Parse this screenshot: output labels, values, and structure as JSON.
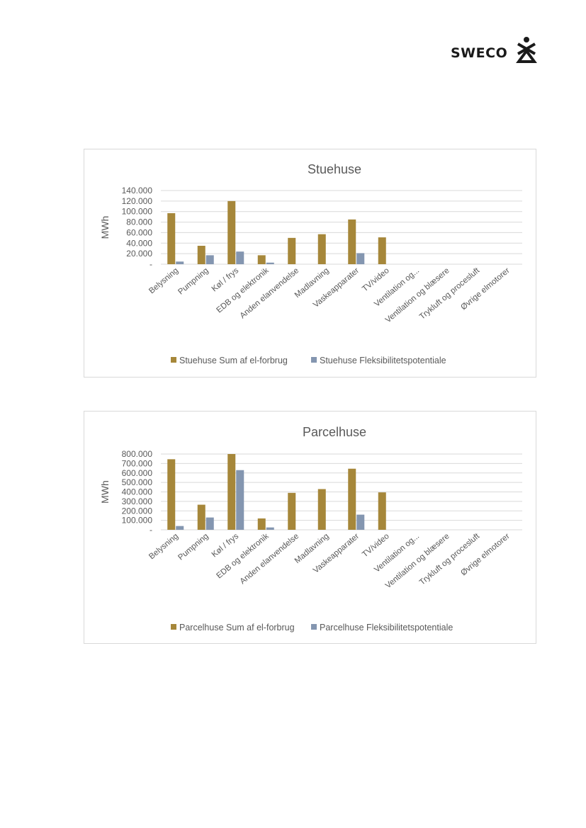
{
  "header": {
    "logo_text": "SWECO"
  },
  "chart_data": [
    {
      "type": "bar",
      "title": "Stuehuse",
      "ylabel": "MWh",
      "xlabel": "",
      "ylim": [
        0,
        140000
      ],
      "yticks": [
        "-",
        "20.000",
        "40.000",
        "60.000",
        "80.000",
        "100.000",
        "120.000",
        "140.000"
      ],
      "categories": [
        "Belysning",
        "Pumpning",
        "Køl / frys",
        "EDB og elektronik",
        "Anden elanvendelse",
        "Madlavning",
        "Vaskeapparater",
        "TV/video",
        "Ventilation og...",
        "Ventilation og blæsere",
        "Trykluft og procesluft",
        "Øvrige elmotorer"
      ],
      "series": [
        {
          "name": "Stuehuse Sum af el-forbrug",
          "color": "#a6873a",
          "values": [
            97000,
            35000,
            120000,
            17000,
            50000,
            57000,
            85000,
            51000,
            0,
            0,
            0,
            0
          ]
        },
        {
          "name": "Stuehuse Fleksibilitetspotentiale",
          "color": "#8496b0",
          "values": [
            5000,
            17000,
            24000,
            3000,
            0,
            0,
            21000,
            0,
            0,
            0,
            0,
            0
          ]
        }
      ],
      "grid": true,
      "legend": "bottom"
    },
    {
      "type": "bar",
      "title": "Parcelhuse",
      "ylabel": "MWh",
      "xlabel": "",
      "ylim": [
        0,
        800000
      ],
      "yticks": [
        "-",
        "100.000",
        "200.000",
        "300.000",
        "400.000",
        "500.000",
        "600.000",
        "700.000",
        "800.000"
      ],
      "categories": [
        "Belysning",
        "Pumpning",
        "Køl / frys",
        "EDB og elektronik",
        "Anden elanvendelse",
        "Madlavning",
        "Vaskeapparater",
        "TV/video",
        "Ventilation og...",
        "Ventilation og blæsere",
        "Trykluft og procesluft",
        "Øvrige elmotorer"
      ],
      "series": [
        {
          "name": "Parcelhuse Sum af el-forbrug",
          "color": "#a6873a",
          "values": [
            745000,
            265000,
            800000,
            120000,
            390000,
            430000,
            645000,
            395000,
            0,
            0,
            0,
            0
          ]
        },
        {
          "name": "Parcelhuse Fleksibilitetspotentiale",
          "color": "#8496b0",
          "values": [
            40000,
            130000,
            630000,
            25000,
            0,
            0,
            160000,
            0,
            0,
            0,
            0,
            0
          ]
        }
      ],
      "grid": true,
      "legend": "bottom"
    }
  ]
}
